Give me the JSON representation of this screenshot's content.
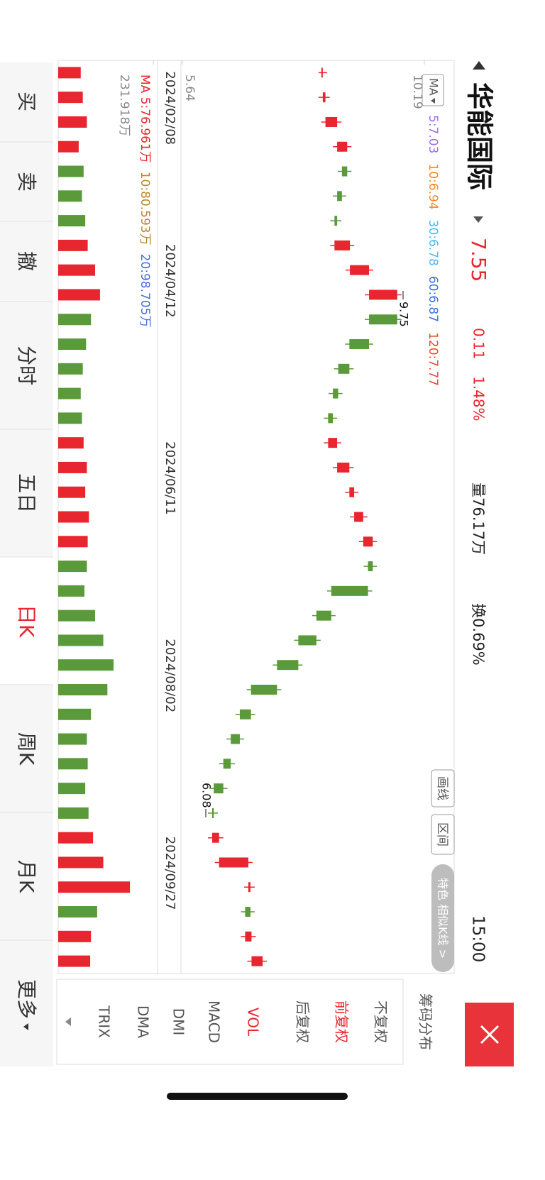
{
  "header": {
    "name": "华能国际",
    "price": "7.55",
    "change": "0.11",
    "change_pct": "1.48%",
    "volume": "量76.17万",
    "turnover": "换0.69%",
    "time": "15:00"
  },
  "toolbar": [
    "画线",
    "区间",
    "特色 相似K线 >"
  ],
  "side_panel": [
    "筹码分布",
    "不复权",
    "前复权",
    "后复权",
    "VOL",
    "MACD",
    "DMI",
    "DMA",
    "TRIX"
  ],
  "tabs": [
    "买",
    "卖",
    "撤",
    "分时",
    "五日",
    "日K",
    "周K",
    "月K",
    "更多"
  ],
  "chart_data": [
    {
      "type": "candlestick",
      "up_color": "#e8262f",
      "down_color": "#5a9a3a",
      "ma_title": "MA",
      "ma_legend": [
        {
          "label": "5:7.03",
          "color": "#9b6cf0"
        },
        {
          "label": "10:6.94",
          "color": "#f0882a"
        },
        {
          "label": "30:6.78",
          "color": "#4fb8f0"
        },
        {
          "label": "60:6.87",
          "color": "#3a6fe0"
        },
        {
          "label": "120:7.77",
          "color": "#e84a2a"
        }
      ],
      "categories": [
        "2024/02/08",
        null,
        null,
        null,
        null,
        null,
        null,
        "2024/04/12",
        null,
        null,
        null,
        null,
        null,
        null,
        null,
        "2024/06/11",
        null,
        null,
        null,
        null,
        null,
        null,
        null,
        "2024/08/02",
        null,
        null,
        null,
        null,
        null,
        null,
        null,
        "2024/09/27",
        null,
        null,
        null,
        null,
        null
      ],
      "values": [
        8.28,
        8.33,
        8.55,
        8.74,
        8.64,
        8.55,
        8.5,
        8.79,
        9.15,
        9.68,
        9.15,
        8.78,
        8.57,
        8.47,
        8.38,
        8.55,
        8.78,
        8.87,
        9.04,
        9.22,
        9.13,
        8.44,
        8.16,
        7.82,
        7.42,
        6.93,
        6.72,
        6.55,
        6.41,
        6.23,
        6.2,
        6.33,
        6.88,
        6.92,
        6.82,
        6.94,
        7.15
      ],
      "ylim": [
        5.64,
        10.19
      ],
      "yticks": [
        10.19,
        5.64
      ],
      "annotations": [
        {
          "text": "9.75"
        },
        {
          "text": "6.08"
        }
      ]
    },
    {
      "type": "bar",
      "up_color": "#e8262f",
      "down_color": "#5a9a3a",
      "legend": [
        {
          "label": "MA 5:76.961万",
          "color": "#e8262f"
        },
        {
          "label": "10:80.593万",
          "color": "#b8862a"
        },
        {
          "label": "20:98.705万",
          "color": "#4a6fd8"
        }
      ],
      "values": [
        55,
        60,
        70,
        50,
        62,
        58,
        66,
        72,
        90,
        102,
        80,
        68,
        60,
        55,
        58,
        62,
        70,
        66,
        75,
        72,
        70,
        64,
        90,
        110,
        135,
        120,
        80,
        70,
        72,
        66,
        74,
        85,
        110,
        175,
        95,
        80,
        78
      ],
      "ylim": [
        0,
        231.918
      ],
      "yticks": [
        {
          "value": 231.918,
          "label": "231.918万"
        }
      ]
    }
  ]
}
